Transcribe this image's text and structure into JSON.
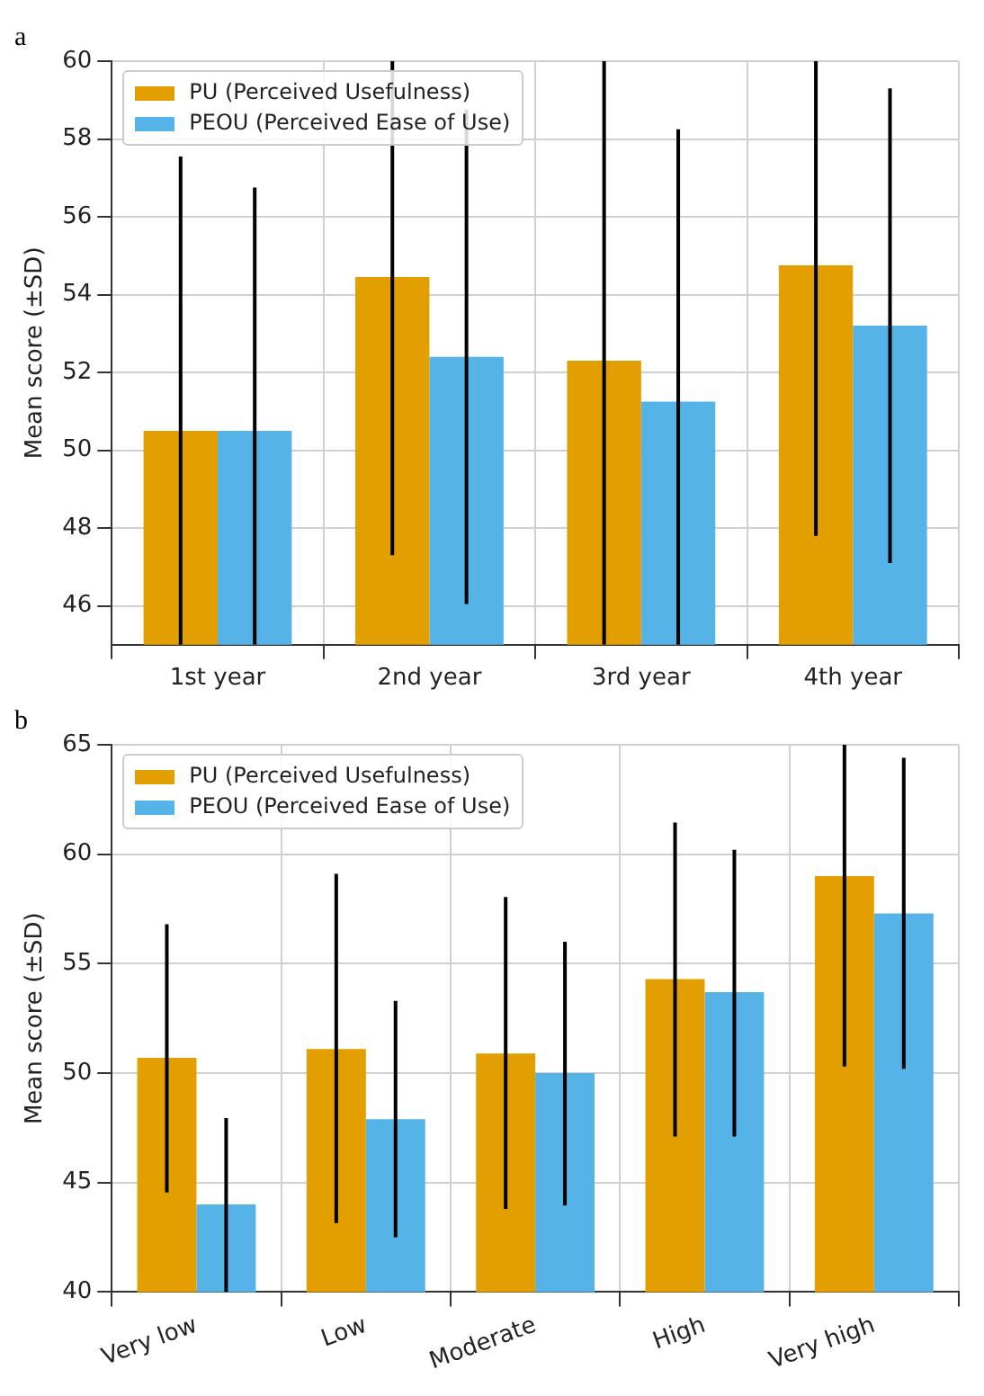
{
  "chart_data": [
    {
      "type": "bar",
      "title": "a",
      "ylabel": "Mean score (±SD)",
      "categories": [
        "1st year",
        "2nd year",
        "3rd year",
        "4th year"
      ],
      "series": [
        {
          "name": "PU (Perceived Usefulness)",
          "color": "#e39f00",
          "values": [
            50.5,
            54.45,
            52.3,
            54.75
          ],
          "errors": [
            [
              45,
              57.55
            ],
            [
              47.3,
              60
            ],
            [
              45,
              60
            ],
            [
              47.8,
              60
            ]
          ]
        },
        {
          "name": "PEOU (Perceived Ease of Use)",
          "color": "#56b3e8",
          "values": [
            50.5,
            52.4,
            51.25,
            53.2
          ],
          "errors": [
            [
              45,
              56.75
            ],
            [
              46.05,
              58.75
            ],
            [
              45,
              58.25
            ],
            [
              47.1,
              59.3
            ]
          ]
        }
      ],
      "ylim": [
        45,
        60
      ],
      "yticks": [
        46,
        48,
        50,
        52,
        54,
        56,
        58,
        60
      ],
      "grid": true,
      "legend": "top left"
    },
    {
      "type": "bar",
      "title": "b",
      "ylabel": "Mean score (±SD)",
      "categories": [
        "Very low",
        "Low",
        "Moderate",
        "High",
        "Very high"
      ],
      "series": [
        {
          "name": "PU (Perceived Usefulness)",
          "color": "#e39f00",
          "values": [
            50.7,
            51.1,
            50.9,
            54.3,
            59.0
          ],
          "errors": [
            [
              44.55,
              56.8
            ],
            [
              43.15,
              59.1
            ],
            [
              43.8,
              58.05
            ],
            [
              47.1,
              61.45
            ],
            [
              50.3,
              65
            ]
          ]
        },
        {
          "name": "PEOU (Perceived Ease of Use)",
          "color": "#56b3e8",
          "values": [
            44.0,
            47.9,
            50.0,
            53.7,
            57.3
          ],
          "errors": [
            [
              40,
              47.95
            ],
            [
              42.5,
              53.3
            ],
            [
              43.95,
              56.0
            ],
            [
              47.1,
              60.2
            ],
            [
              50.2,
              64.4
            ]
          ]
        }
      ],
      "ylim": [
        40,
        65
      ],
      "yticks": [
        40,
        45,
        50,
        55,
        60,
        65
      ],
      "grid": true,
      "legend": "top left"
    }
  ]
}
